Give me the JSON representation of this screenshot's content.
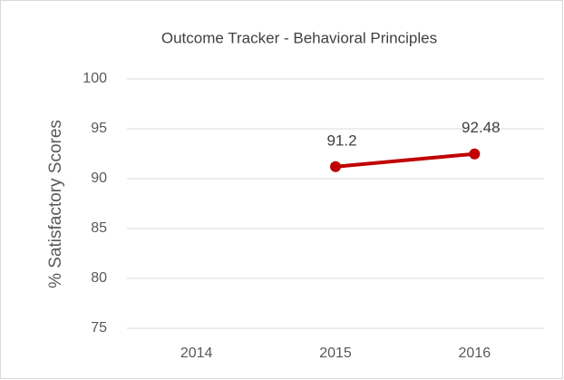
{
  "chart_data": {
    "type": "line",
    "title": "Outcome Tracker - Behavioral Principles",
    "y_label": "% Satisfactory Scores",
    "categories": [
      "2014",
      "2015",
      "2016"
    ],
    "values": [
      null,
      91.2,
      92.48
    ],
    "color": "#c00000",
    "ylim": [
      75,
      100
    ],
    "yticks": [
      75,
      80,
      85,
      90,
      95,
      100
    ],
    "grid": true,
    "data_labels": true
  }
}
